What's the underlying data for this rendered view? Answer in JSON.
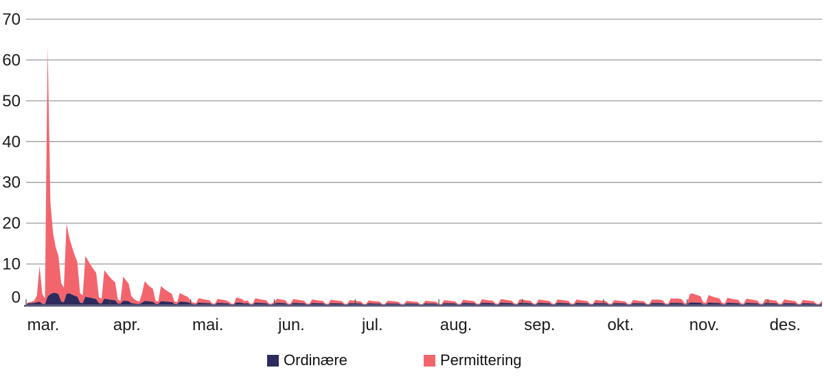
{
  "chart_data": {
    "type": "area",
    "stacked": true,
    "grid": true,
    "legend_position": "bottom",
    "colors": {
      "gridline": "#9a9a9a",
      "axis_line": "#2c2a57",
      "tick": "#4a4a4a",
      "text": "#1a1a1a"
    },
    "y_axis": {
      "ticks": [
        0,
        10,
        20,
        30,
        40,
        50,
        60,
        70
      ],
      "range": [
        0,
        70
      ]
    },
    "x_axis": {
      "months": [
        "mar.",
        "apr.",
        "mai.",
        "jun.",
        "jul.",
        "aug.",
        "sep.",
        "okt.",
        "nov.",
        "des."
      ],
      "month_day_offsets": [
        0,
        31,
        61,
        92,
        122,
        153,
        184,
        214,
        245,
        275
      ]
    },
    "series": [
      {
        "name": "Ordinære",
        "color": "#2d2b5d",
        "values": [
          0.1,
          0.35,
          0.4,
          0.45,
          0.6,
          0.75,
          0.2,
          0.15,
          2.0,
          2.6,
          2.9,
          2.9,
          2.6,
          0.8,
          0.6,
          2.7,
          2.8,
          2.5,
          2.2,
          2.0,
          0.5,
          0.4,
          2.0,
          1.8,
          1.7,
          1.55,
          1.4,
          0.35,
          0.3,
          1.5,
          1.38,
          1.27,
          1.17,
          1.08,
          0.28,
          0.23,
          1.0,
          0.95,
          0.9,
          0.4,
          0.28,
          0.22,
          0.18,
          0.5,
          0.95,
          0.88,
          0.8,
          0.74,
          0.2,
          0.16,
          0.9,
          0.84,
          0.78,
          0.72,
          0.67,
          0.18,
          0.15,
          0.8,
          0.74,
          0.68,
          0.63,
          0.3,
          0.14,
          0.12,
          0.5,
          0.47,
          0.44,
          0.41,
          0.38,
          0.1,
          0.09,
          0.46,
          0.43,
          0.41,
          0.38,
          0.3,
          0.1,
          0.08,
          0.55,
          0.5,
          0.46,
          0.3,
          0.38,
          0.1,
          0.09,
          0.5,
          0.46,
          0.43,
          0.4,
          0.37,
          0.1,
          0.08,
          0.25,
          0.48,
          0.45,
          0.42,
          0.39,
          0.1,
          0.08,
          0.45,
          0.42,
          0.4,
          0.37,
          0.35,
          0.09,
          0.08,
          0.42,
          0.4,
          0.37,
          0.35,
          0.33,
          0.09,
          0.07,
          0.4,
          0.38,
          0.36,
          0.34,
          0.32,
          0.08,
          0.07,
          0.38,
          0.36,
          0.34,
          0.32,
          0.3,
          0.08,
          0.07,
          0.35,
          0.33,
          0.31,
          0.29,
          0.28,
          0.07,
          0.06,
          0.33,
          0.31,
          0.29,
          0.28,
          0.26,
          0.07,
          0.06,
          0.31,
          0.29,
          0.28,
          0.26,
          0.25,
          0.07,
          0.06,
          0.33,
          0.31,
          0.29,
          0.28,
          0.26,
          0.07,
          0.06,
          0.4,
          0.38,
          0.36,
          0.34,
          0.32,
          0.08,
          0.07,
          0.45,
          0.42,
          0.4,
          0.38,
          0.36,
          0.09,
          0.08,
          0.48,
          0.45,
          0.43,
          0.4,
          0.38,
          0.1,
          0.08,
          0.5,
          0.47,
          0.44,
          0.42,
          0.39,
          0.1,
          0.08,
          0.48,
          0.45,
          0.43,
          0.4,
          0.38,
          0.1,
          0.08,
          0.46,
          0.43,
          0.41,
          0.39,
          0.36,
          0.09,
          0.08,
          0.46,
          0.43,
          0.41,
          0.39,
          0.36,
          0.09,
          0.08,
          0.45,
          0.42,
          0.4,
          0.38,
          0.36,
          0.09,
          0.08,
          0.43,
          0.4,
          0.38,
          0.36,
          0.34,
          0.09,
          0.07,
          0.4,
          0.38,
          0.36,
          0.34,
          0.32,
          0.08,
          0.07,
          0.41,
          0.39,
          0.37,
          0.35,
          0.33,
          0.08,
          0.07,
          0.43,
          0.41,
          0.42,
          0.4,
          0.38,
          0.09,
          0.08,
          0.46,
          0.44,
          0.45,
          0.43,
          0.41,
          0.1,
          0.09,
          0.55,
          0.58,
          0.54,
          0.51,
          0.48,
          0.12,
          0.1,
          0.52,
          0.49,
          0.47,
          0.44,
          0.42,
          0.11,
          0.09,
          0.48,
          0.45,
          0.43,
          0.4,
          0.38,
          0.1,
          0.08,
          0.45,
          0.42,
          0.4,
          0.38,
          0.36,
          0.09,
          0.08,
          0.42,
          0.4,
          0.38,
          0.36,
          0.34,
          0.09,
          0.07,
          0.4,
          0.38,
          0.36,
          0.34,
          0.32,
          0.08,
          0.07,
          0.37,
          0.35,
          0.33,
          0.31,
          0.3,
          0.08,
          0.06,
          0.35
        ]
      },
      {
        "name": "Permittering",
        "color": "#f3656d",
        "values": [
          0.15,
          0.25,
          0.3,
          0.55,
          1.6,
          8.75,
          2.4,
          1.45,
          61.5,
          22.4,
          14.6,
          11.1,
          9.4,
          4.5,
          3.6,
          17.1,
          13.7,
          11.7,
          10.0,
          8.5,
          2.3,
          1.9,
          10.0,
          9.0,
          8.0,
          7.15,
          6.4,
          1.45,
          1.2,
          7.0,
          6.22,
          5.53,
          4.93,
          4.42,
          1.02,
          0.77,
          5.9,
          5.05,
          4.3,
          1.8,
          1.12,
          0.78,
          0.62,
          2.3,
          4.85,
          4.12,
          3.6,
          3.16,
          0.75,
          0.59,
          3.7,
          3.16,
          2.72,
          2.38,
          2.03,
          0.57,
          0.45,
          2.1,
          1.76,
          1.52,
          1.27,
          0.6,
          0.36,
          0.28,
          1.1,
          0.98,
          0.86,
          0.79,
          0.72,
          0.2,
          0.16,
          0.99,
          0.87,
          0.79,
          0.72,
          0.5,
          0.18,
          0.14,
          1.25,
          1.1,
          0.94,
          0.6,
          0.72,
          0.2,
          0.16,
          1.1,
          0.99,
          0.87,
          0.8,
          0.73,
          0.2,
          0.16,
          0.45,
          1.02,
          0.9,
          0.83,
          0.76,
          0.2,
          0.16,
          0.95,
          0.88,
          0.8,
          0.73,
          0.65,
          0.19,
          0.14,
          0.88,
          0.8,
          0.73,
          0.65,
          0.62,
          0.17,
          0.14,
          0.85,
          0.77,
          0.69,
          0.63,
          0.58,
          0.17,
          0.13,
          0.77,
          0.69,
          0.63,
          0.58,
          0.53,
          0.15,
          0.12,
          0.7,
          0.64,
          0.59,
          0.54,
          0.49,
          0.15,
          0.12,
          0.67,
          0.61,
          0.56,
          0.51,
          0.47,
          0.14,
          0.11,
          0.64,
          0.59,
          0.53,
          0.49,
          0.45,
          0.13,
          0.1,
          0.67,
          0.61,
          0.56,
          0.51,
          0.47,
          0.14,
          0.11,
          0.75,
          0.68,
          0.62,
          0.56,
          0.51,
          0.16,
          0.12,
          0.8,
          0.73,
          0.66,
          0.6,
          0.54,
          0.17,
          0.13,
          0.87,
          0.79,
          0.71,
          0.65,
          0.59,
          0.18,
          0.14,
          0.9,
          0.82,
          0.75,
          0.67,
          0.61,
          0.19,
          0.15,
          0.87,
          0.79,
          0.71,
          0.65,
          0.59,
          0.18,
          0.14,
          0.84,
          0.77,
          0.69,
          0.62,
          0.57,
          0.18,
          0.13,
          0.86,
          0.78,
          0.7,
          0.63,
          0.58,
          0.18,
          0.13,
          0.83,
          0.76,
          0.68,
          0.62,
          0.56,
          0.17,
          0.13,
          0.79,
          0.72,
          0.65,
          0.59,
          0.53,
          0.16,
          0.13,
          0.75,
          0.68,
          0.61,
          0.56,
          0.51,
          0.16,
          0.12,
          0.77,
          0.7,
          0.63,
          0.57,
          0.52,
          0.16,
          0.12,
          0.87,
          0.84,
          0.88,
          0.8,
          0.72,
          0.21,
          0.16,
          1.14,
          1.06,
          1.1,
          1.07,
          0.99,
          0.3,
          0.23,
          2.05,
          2.22,
          1.96,
          1.79,
          1.62,
          0.48,
          0.38,
          1.88,
          1.61,
          1.43,
          1.26,
          1.13,
          0.33,
          0.26,
          1.22,
          1.1,
          0.97,
          0.9,
          0.82,
          0.24,
          0.19,
          1.05,
          0.95,
          0.86,
          0.77,
          0.7,
          0.21,
          0.16,
          0.98,
          0.88,
          0.79,
          0.72,
          0.65,
          0.19,
          0.16,
          0.9,
          0.81,
          0.73,
          0.66,
          0.6,
          0.18,
          0.14,
          0.83,
          0.75,
          0.68,
          0.62,
          0.55,
          0.16,
          0.13,
          0.65
        ]
      }
    ]
  },
  "legend": {
    "items": [
      {
        "label": "Ordinære"
      },
      {
        "label": "Permittering"
      }
    ]
  }
}
